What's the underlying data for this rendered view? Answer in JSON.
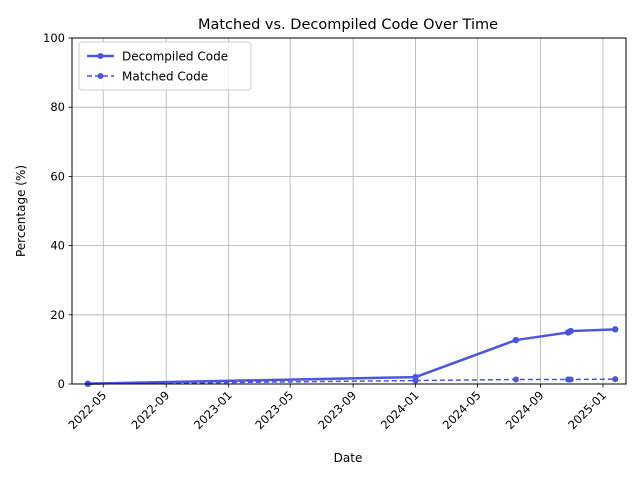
{
  "chart_data": {
    "type": "line",
    "title": "Matched vs. Decompiled Code Over Time",
    "xlabel": "Date",
    "ylabel": "Percentage (%)",
    "ylim": [
      0,
      100
    ],
    "xlim": [
      "2022-03-01",
      "2025-02-15"
    ],
    "grid": true,
    "legend_position": "top-left",
    "x_ticks": [
      "2022-05",
      "2022-09",
      "2023-01",
      "2023-05",
      "2023-09",
      "2024-01",
      "2024-05",
      "2024-09",
      "2025-01"
    ],
    "y_ticks": [
      0,
      20,
      40,
      60,
      80,
      100
    ],
    "series": [
      {
        "name": "Decompiled Code",
        "color": "#4a55e0",
        "style": "solid",
        "points": [
          {
            "x": "2022-04-01",
            "y": 0.1
          },
          {
            "x": "2024-01-01",
            "y": 2.0
          },
          {
            "x": "2024-07-15",
            "y": 12.7
          },
          {
            "x": "2024-10-25",
            "y": 14.9
          },
          {
            "x": "2024-10-30",
            "y": 15.3
          },
          {
            "x": "2025-01-25",
            "y": 15.8
          }
        ]
      },
      {
        "name": "Matched Code",
        "color": "#4a55e0",
        "style": "dashed",
        "points": [
          {
            "x": "2022-04-01",
            "y": 0.0
          },
          {
            "x": "2024-01-01",
            "y": 1.0
          },
          {
            "x": "2024-07-15",
            "y": 1.3
          },
          {
            "x": "2024-10-25",
            "y": 1.3
          },
          {
            "x": "2024-10-30",
            "y": 1.3
          },
          {
            "x": "2025-01-25",
            "y": 1.4
          }
        ]
      }
    ]
  }
}
